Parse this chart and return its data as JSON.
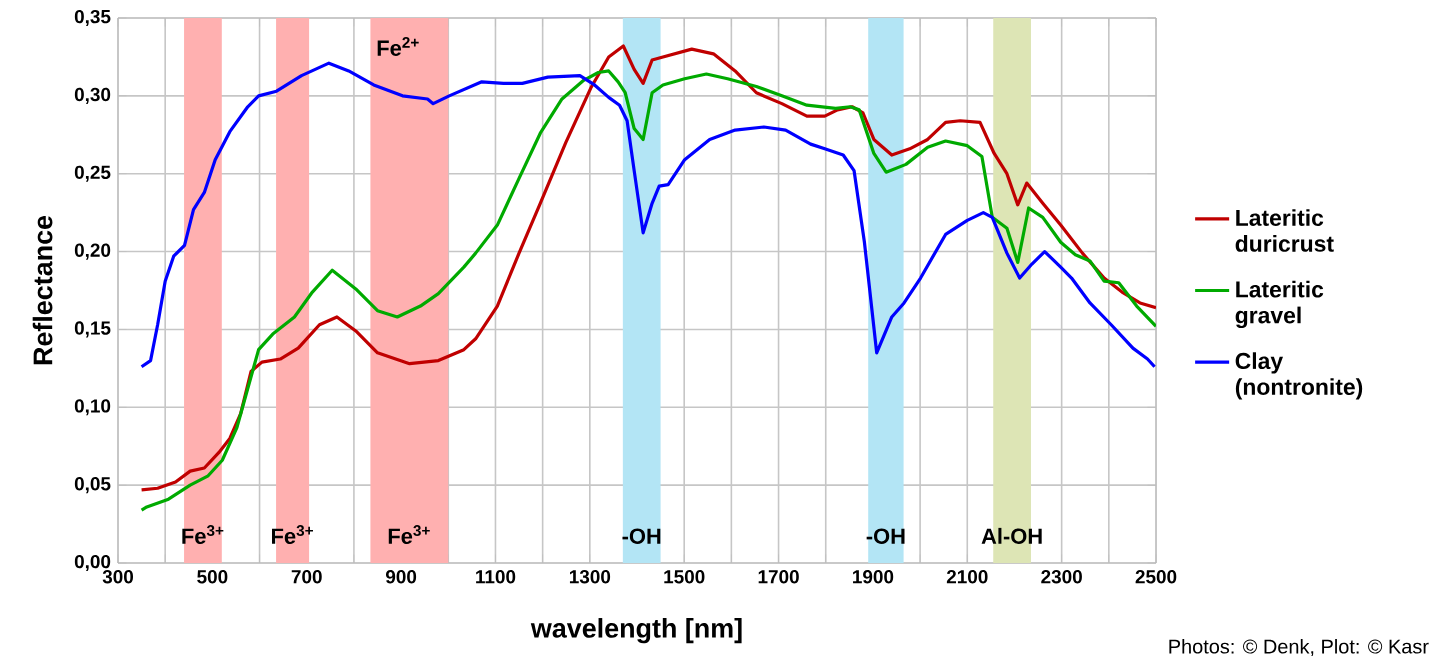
{
  "chart_data": {
    "type": "line",
    "xlabel": "wavelength [nm]",
    "ylabel": "Reflectance",
    "xlim": [
      300,
      2500
    ],
    "ylim": [
      0,
      0.35
    ],
    "xticks": [
      300,
      {
        "value": 400,
        "label": null
      },
      500,
      {
        "value": 600,
        "label": null
      },
      700,
      {
        "value": 800,
        "label": null
      },
      900,
      {
        "value": 1000,
        "label": null
      },
      1100,
      {
        "value": 1200,
        "label": null
      },
      1300,
      {
        "value": 1400,
        "label": null
      },
      1500,
      {
        "value": 1600,
        "label": null
      },
      1700,
      {
        "value": 1800,
        "label": null
      },
      1900,
      {
        "value": 2000,
        "label": null
      },
      2100,
      {
        "value": 2200,
        "label": null
      },
      2300,
      {
        "value": 2400,
        "label": null
      },
      2500
    ],
    "yticks": [
      {
        "value": 0,
        "label": "0,00"
      },
      {
        "value": 0.05,
        "label": "0,05"
      },
      {
        "value": 0.1,
        "label": "0,10"
      },
      {
        "value": 0.15,
        "label": "0,15"
      },
      {
        "value": 0.2,
        "label": "0,20"
      },
      {
        "value": 0.25,
        "label": "0,25"
      },
      {
        "value": 0.3,
        "label": "0,30"
      },
      {
        "value": 0.35,
        "label": "0,35"
      }
    ],
    "grid": true,
    "legend": "right",
    "marker": "none",
    "line_style": "solid",
    "series": [
      {
        "name": "Lateritic duricrust",
        "color": "#c00000",
        "x": [
          350,
          384,
          422,
          453,
          483,
          514,
          537,
          560,
          582,
          605,
          644,
          682,
          727,
          764,
          804,
          850,
          918,
          979,
          1033,
          1058,
          1104,
          1150,
          1195,
          1249,
          1302,
          1340,
          1371,
          1394,
          1413,
          1432,
          1455,
          1516,
          1562,
          1608,
          1653,
          1707,
          1760,
          1798,
          1825,
          1856,
          1879,
          1902,
          1940,
          1978,
          2016,
          2054,
          2085,
          2127,
          2157,
          2184,
          2207,
          2226,
          2260,
          2298,
          2344,
          2390,
          2428,
          2466,
          2500
        ],
        "values": [
          0.047,
          0.048,
          0.052,
          0.059,
          0.061,
          0.071,
          0.08,
          0.096,
          0.123,
          0.129,
          0.131,
          0.138,
          0.153,
          0.158,
          0.149,
          0.135,
          0.128,
          0.13,
          0.137,
          0.144,
          0.165,
          0.199,
          0.231,
          0.27,
          0.305,
          0.325,
          0.332,
          0.317,
          0.308,
          0.323,
          0.325,
          0.33,
          0.327,
          0.316,
          0.302,
          0.295,
          0.287,
          0.287,
          0.291,
          0.293,
          0.289,
          0.272,
          0.262,
          0.266,
          0.272,
          0.283,
          0.284,
          0.283,
          0.263,
          0.25,
          0.23,
          0.244,
          0.231,
          0.217,
          0.199,
          0.183,
          0.174,
          0.167,
          0.164
        ]
      },
      {
        "name": "Lateritic gravel",
        "color": "#00aa00",
        "x": [
          350,
          361,
          407,
          453,
          491,
          521,
          552,
          575,
          598,
          628,
          674,
          712,
          754,
          804,
          850,
          892,
          941,
          979,
          1033,
          1058,
          1104,
          1150,
          1195,
          1241,
          1287,
          1318,
          1340,
          1360,
          1375,
          1394,
          1413,
          1432,
          1455,
          1501,
          1547,
          1592,
          1653,
          1707,
          1760,
          1821,
          1852,
          1871,
          1902,
          1928,
          1970,
          2016,
          2054,
          2100,
          2131,
          2153,
          2184,
          2207,
          2230,
          2260,
          2298,
          2329,
          2360,
          2390,
          2421,
          2459,
          2500
        ],
        "values": [
          0.034,
          0.036,
          0.041,
          0.05,
          0.056,
          0.066,
          0.087,
          0.112,
          0.137,
          0.147,
          0.158,
          0.174,
          0.188,
          0.176,
          0.162,
          0.158,
          0.165,
          0.173,
          0.19,
          0.199,
          0.217,
          0.247,
          0.276,
          0.298,
          0.31,
          0.315,
          0.316,
          0.309,
          0.302,
          0.279,
          0.272,
          0.302,
          0.307,
          0.311,
          0.314,
          0.311,
          0.306,
          0.3,
          0.294,
          0.292,
          0.293,
          0.291,
          0.263,
          0.251,
          0.256,
          0.267,
          0.271,
          0.268,
          0.261,
          0.222,
          0.215,
          0.193,
          0.228,
          0.222,
          0.206,
          0.198,
          0.194,
          0.181,
          0.18,
          0.165,
          0.152
        ]
      },
      {
        "name": "Clay (nontronite)",
        "color": "#0000ff",
        "x": [
          350,
          369,
          384,
          400,
          418,
          441,
          460,
          483,
          506,
          537,
          575,
          598,
          636,
          689,
          747,
          789,
          842,
          903,
          956,
          968,
          1002,
          1071,
          1117,
          1157,
          1211,
          1279,
          1310,
          1340,
          1363,
          1379,
          1394,
          1413,
          1432,
          1447,
          1466,
          1501,
          1554,
          1608,
          1669,
          1715,
          1768,
          1798,
          1837,
          1860,
          1882,
          1908,
          1940,
          1966,
          2001,
          2054,
          2100,
          2134,
          2153,
          2184,
          2211,
          2237,
          2264,
          2298,
          2321,
          2360,
          2405,
          2451,
          2482,
          2497
        ],
        "values": [
          0.126,
          0.13,
          0.153,
          0.181,
          0.197,
          0.204,
          0.227,
          0.238,
          0.259,
          0.277,
          0.293,
          0.3,
          0.303,
          0.313,
          0.321,
          0.316,
          0.307,
          0.3,
          0.298,
          0.295,
          0.3,
          0.309,
          0.308,
          0.308,
          0.312,
          0.313,
          0.307,
          0.299,
          0.294,
          0.284,
          0.252,
          0.212,
          0.231,
          0.242,
          0.243,
          0.259,
          0.272,
          0.278,
          0.28,
          0.278,
          0.269,
          0.266,
          0.262,
          0.252,
          0.206,
          0.135,
          0.158,
          0.167,
          0.183,
          0.211,
          0.22,
          0.225,
          0.222,
          0.199,
          0.183,
          0.192,
          0.2,
          0.19,
          0.183,
          0.167,
          0.153,
          0.138,
          0.131,
          0.126
        ]
      }
    ],
    "bands": [
      {
        "axis": "x",
        "from": 440,
        "to": 520,
        "label": "Fe$^{3+}$",
        "color": "#ffb0b0"
      },
      {
        "axis": "x",
        "from": 635,
        "to": 705,
        "label": "Fe$^{3+}$",
        "color": "#ffb0b0"
      },
      {
        "axis": "x",
        "from": 835,
        "to": 1000,
        "label": "Fe$^{3+}$",
        "color": "#ffb0b0"
      },
      {
        "axis": "x",
        "from": 1370,
        "to": 1450,
        "label": "-OH",
        "color": "#b3e5f5"
      },
      {
        "axis": "x",
        "from": 1890,
        "to": 1965,
        "label": "-OH",
        "color": "#b3e5f5"
      },
      {
        "axis": "x",
        "from": 2155,
        "to": 2235,
        "label": "Al-OH",
        "color": "#dde5b5"
      }
    ],
    "annotations": [
      "Fe$^{2+}$",
      "Photos: © Denk, Plot: © Kasr"
    ]
  }
}
